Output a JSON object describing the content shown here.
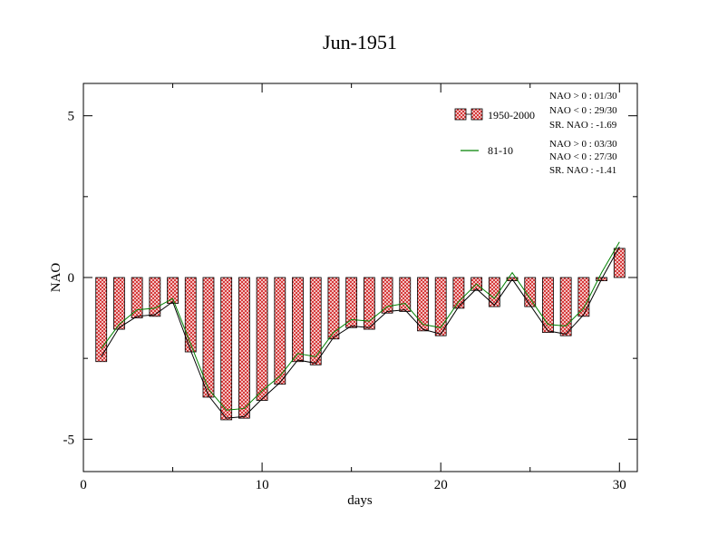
{
  "chart_data": {
    "type": "bar",
    "title": "Jun-1951",
    "xlabel": "days",
    "ylabel": "NAO",
    "xlim": [
      0,
      31
    ],
    "ylim": [
      -6,
      6
    ],
    "xticks": [
      0,
      10,
      20,
      30
    ],
    "yticks": [
      -5,
      0,
      5
    ],
    "x": [
      1,
      2,
      3,
      4,
      5,
      6,
      7,
      8,
      9,
      10,
      11,
      12,
      13,
      14,
      15,
      16,
      17,
      18,
      19,
      20,
      21,
      22,
      23,
      24,
      25,
      26,
      27,
      28,
      29,
      30
    ],
    "series": [
      {
        "name": "1950-2000",
        "kind": "bar",
        "color": "#e06666",
        "values": [
          -2.6,
          -1.6,
          -1.25,
          -1.2,
          -0.8,
          -2.3,
          -3.7,
          -4.4,
          -4.35,
          -3.8,
          -3.3,
          -2.6,
          -2.7,
          -1.9,
          -1.55,
          -1.6,
          -1.1,
          -1.05,
          -1.65,
          -1.8,
          -0.95,
          -0.4,
          -0.9,
          -0.1,
          -0.9,
          -1.7,
          -1.8,
          -1.2,
          -0.1,
          0.9
        ]
      },
      {
        "name": "81-10",
        "kind": "line",
        "color": "#008000",
        "values": [
          -2.2,
          -1.45,
          -1.0,
          -0.95,
          -0.65,
          -2.05,
          -3.45,
          -4.1,
          -4.05,
          -3.5,
          -3.05,
          -2.35,
          -2.45,
          -1.7,
          -1.3,
          -1.35,
          -0.9,
          -0.8,
          -1.45,
          -1.55,
          -0.75,
          -0.2,
          -0.65,
          0.15,
          -0.65,
          -1.45,
          -1.5,
          -0.95,
          0.15,
          1.1
        ]
      }
    ],
    "black_line": [
      -2.45,
      -1.55,
      -1.2,
      -1.15,
      -0.75,
      -2.25,
      -3.65,
      -4.35,
      -4.3,
      -3.75,
      -3.25,
      -2.55,
      -2.65,
      -1.85,
      -1.5,
      -1.55,
      -1.05,
      -1.0,
      -1.6,
      -1.75,
      -0.9,
      -0.35,
      -0.85,
      -0.05,
      -0.85,
      -1.65,
      -1.75,
      -1.15,
      -0.05,
      0.95
    ],
    "legend_position": "top-right",
    "stats": [
      [
        "NAO > 0 : 01/30",
        "NAO < 0 : 29/30",
        "SR. NAO : -1.69"
      ],
      [
        "NAO > 0 : 03/30",
        "NAO < 0 : 27/30",
        "SR. NAO : -1.41"
      ]
    ]
  }
}
